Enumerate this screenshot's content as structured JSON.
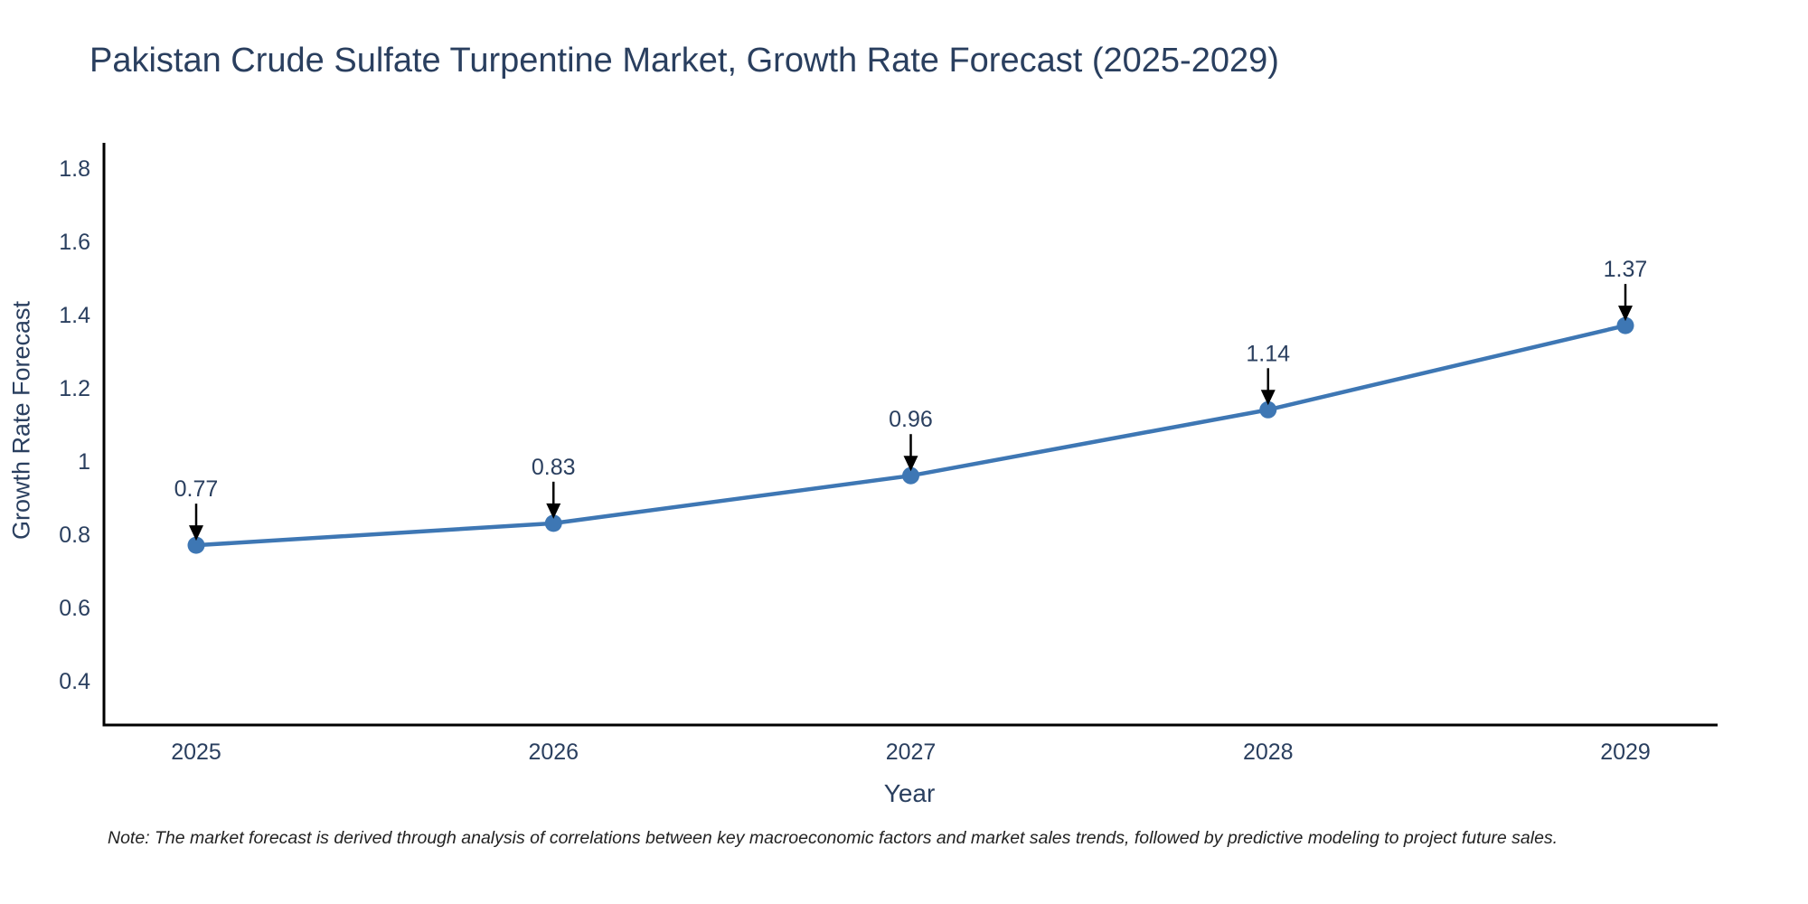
{
  "title": "Pakistan Crude Sulfate Turpentine Market, Growth Rate Forecast (2025-2029)",
  "note": "Note: The market forecast is derived through analysis of correlations between key macroeconomic factors and market sales trends, followed by predictive modeling to project future sales.",
  "chart_data": {
    "type": "line",
    "title": "Pakistan Crude Sulfate Turpentine Market, Growth Rate Forecast (2025-2029)",
    "xlabel": "Year",
    "ylabel": "Growth Rate Forecast",
    "categories": [
      "2025",
      "2026",
      "2027",
      "2028",
      "2029"
    ],
    "x": [
      2025,
      2026,
      2027,
      2028,
      2029
    ],
    "series": [
      {
        "name": "Growth Rate Forecast",
        "values": [
          0.77,
          0.83,
          0.96,
          1.14,
          1.37
        ],
        "point_labels": [
          "0.77",
          "0.83",
          "0.96",
          "1.14",
          "1.37"
        ]
      }
    ],
    "yticks": [
      0.4,
      0.6,
      0.8,
      1,
      1.2,
      1.4,
      1.6,
      1.8
    ],
    "ytick_labels": [
      "0.4",
      "0.6",
      "0.8",
      "1",
      "1.2",
      "1.4",
      "1.6",
      "1.8"
    ],
    "ylim": [
      0.27,
      1.87
    ],
    "grid": false,
    "legend_position": "none",
    "annotations_style": "value-above-with-down-arrow",
    "colors": {
      "line": "#3E77B4",
      "marker": "#3E77B4",
      "axis": "#000000",
      "text": "#2a3f5f",
      "annotation_arrow": "#000000",
      "note_text": "#222222",
      "background": "#ffffff"
    }
  }
}
